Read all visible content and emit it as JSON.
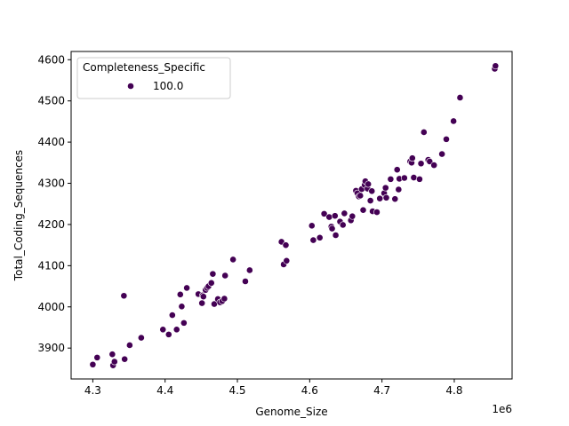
{
  "chart_data": {
    "type": "scatter",
    "title": "",
    "xlabel": "Genome_Size",
    "ylabel": "Total_Coding_Sequences",
    "x_offset_label": "1e6",
    "x_scale": 1000000,
    "xlim": [
      4.27,
      4.88
    ],
    "ylim": [
      3825,
      4620
    ],
    "x_ticks": [
      4.3,
      4.4,
      4.5,
      4.6,
      4.7,
      4.8
    ],
    "x_tick_labels": [
      "4.3",
      "4.4",
      "4.5",
      "4.6",
      "4.7",
      "4.8"
    ],
    "y_ticks": [
      3900,
      4000,
      4100,
      4200,
      4300,
      4400,
      4500,
      4600
    ],
    "y_tick_labels": [
      "3900",
      "4000",
      "4100",
      "4200",
      "4300",
      "4400",
      "4500",
      "4600"
    ],
    "grid": false,
    "legend": {
      "title": "Completeness_Specific",
      "placement": "upper-left",
      "entries": [
        {
          "label": "100.0",
          "color": "#440154"
        }
      ]
    },
    "series": [
      {
        "name": "100.0",
        "color": "#440154",
        "points": [
          [
            4.3,
            3860
          ],
          [
            4.306,
            3877
          ],
          [
            4.327,
            3885
          ],
          [
            4.328,
            3858
          ],
          [
            4.33,
            3867
          ],
          [
            4.343,
            4027
          ],
          [
            4.344,
            3873
          ],
          [
            4.351,
            3907
          ],
          [
            4.367,
            3925
          ],
          [
            4.397,
            3945
          ],
          [
            4.405,
            3933
          ],
          [
            4.41,
            3980
          ],
          [
            4.416,
            3945
          ],
          [
            4.421,
            4030
          ],
          [
            4.423,
            4001
          ],
          [
            4.426,
            3961
          ],
          [
            4.43,
            4046
          ],
          [
            4.446,
            4031
          ],
          [
            4.451,
            4009
          ],
          [
            4.452,
            4028
          ],
          [
            4.453,
            4025
          ],
          [
            4.456,
            4041
          ],
          [
            4.458,
            4046
          ],
          [
            4.46,
            4050
          ],
          [
            4.464,
            4058
          ],
          [
            4.466,
            4080
          ],
          [
            4.468,
            4007
          ],
          [
            4.473,
            4019
          ],
          [
            4.476,
            4011
          ],
          [
            4.479,
            4014
          ],
          [
            4.482,
            4020
          ],
          [
            4.483,
            4076
          ],
          [
            4.494,
            4115
          ],
          [
            4.511,
            4062
          ],
          [
            4.517,
            4089
          ],
          [
            4.561,
            4158
          ],
          [
            4.564,
            4103
          ],
          [
            4.567,
            4150
          ],
          [
            4.568,
            4112
          ],
          [
            4.603,
            4197
          ],
          [
            4.605,
            4162
          ],
          [
            4.614,
            4168
          ],
          [
            4.62,
            4226
          ],
          [
            4.627,
            4218
          ],
          [
            4.63,
            4195
          ],
          [
            4.631,
            4190
          ],
          [
            4.635,
            4221
          ],
          [
            4.636,
            4174
          ],
          [
            4.642,
            4207
          ],
          [
            4.646,
            4199
          ],
          [
            4.648,
            4227
          ],
          [
            4.657,
            4210
          ],
          [
            4.659,
            4220
          ],
          [
            4.664,
            4282
          ],
          [
            4.666,
            4276
          ],
          [
            4.668,
            4268
          ],
          [
            4.67,
            4270
          ],
          [
            4.672,
            4286
          ],
          [
            4.674,
            4235
          ],
          [
            4.676,
            4296
          ],
          [
            4.677,
            4305
          ],
          [
            4.68,
            4287
          ],
          [
            4.681,
            4298
          ],
          [
            4.684,
            4258
          ],
          [
            4.686,
            4281
          ],
          [
            4.687,
            4232
          ],
          [
            4.693,
            4230
          ],
          [
            4.697,
            4263
          ],
          [
            4.703,
            4276
          ],
          [
            4.705,
            4289
          ],
          [
            4.706,
            4265
          ],
          [
            4.712,
            4310
          ],
          [
            4.718,
            4262
          ],
          [
            4.721,
            4333
          ],
          [
            4.723,
            4285
          ],
          [
            4.724,
            4311
          ],
          [
            4.731,
            4313
          ],
          [
            4.739,
            4353
          ],
          [
            4.741,
            4350
          ],
          [
            4.742,
            4361
          ],
          [
            4.744,
            4314
          ],
          [
            4.752,
            4310
          ],
          [
            4.754,
            4348
          ],
          [
            4.758,
            4424
          ],
          [
            4.764,
            4357
          ],
          [
            4.766,
            4353
          ],
          [
            4.772,
            4344
          ],
          [
            4.783,
            4371
          ],
          [
            4.789,
            4407
          ],
          [
            4.799,
            4451
          ],
          [
            4.808,
            4508
          ],
          [
            4.856,
            4578
          ],
          [
            4.857,
            4585
          ]
        ]
      }
    ]
  }
}
